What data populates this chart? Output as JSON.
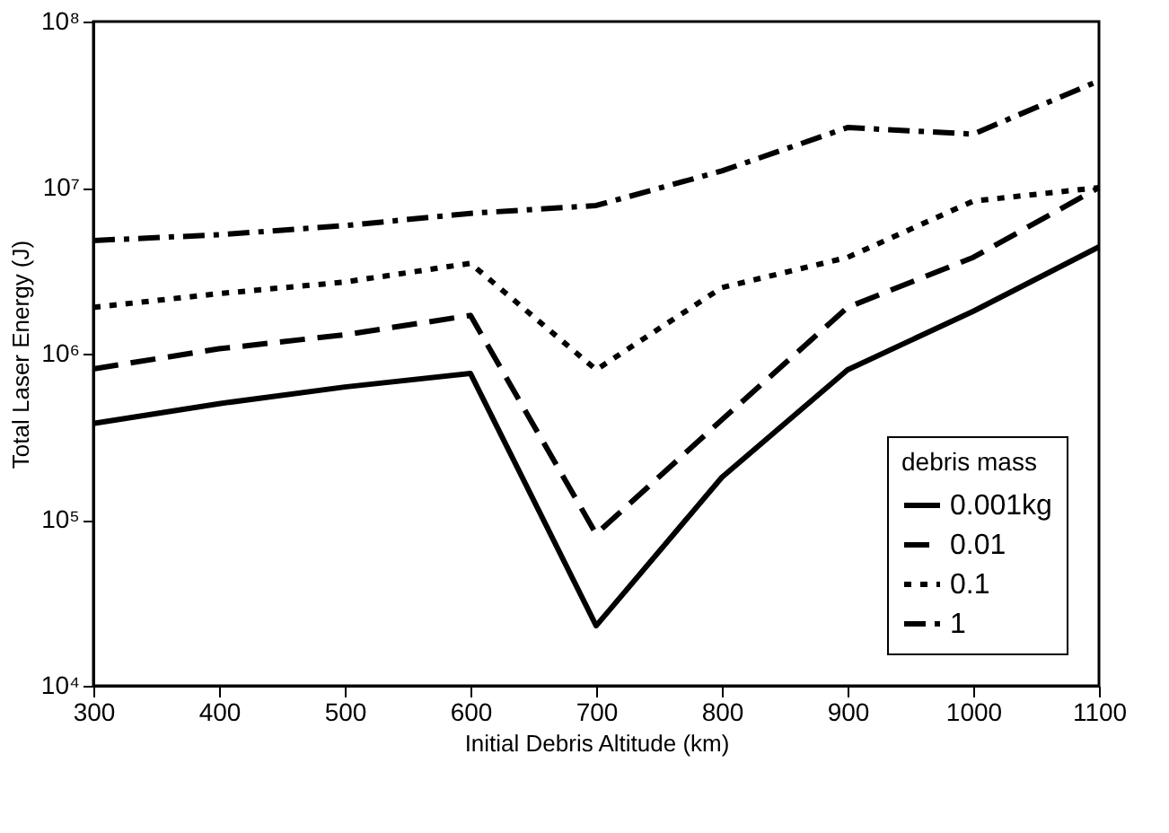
{
  "chart_data": {
    "type": "line",
    "xlabel": "Initial Debris Altitude (km)",
    "ylabel": "Total Laser Energy (J)",
    "legend_title": "debris mass",
    "legend": "bottom right",
    "log": "y",
    "grid": false,
    "marker": "none",
    "x": [
      300,
      400,
      500,
      600,
      700,
      800,
      900,
      1000,
      1100
    ],
    "xlim": [
      300,
      1100
    ],
    "xticks": [
      300,
      400,
      500,
      600,
      700,
      800,
      900,
      1000,
      1100
    ],
    "ylim": [
      10000,
      100000000
    ],
    "yticks": [
      {
        "value": 10000,
        "label": "10⁴"
      },
      {
        "value": 100000,
        "label": "10⁵"
      },
      {
        "value": 1000000,
        "label": "10⁶"
      },
      {
        "value": 10000000,
        "label": "10⁷"
      },
      {
        "value": 100000000,
        "label": "10⁸"
      }
    ],
    "series": [
      {
        "name": "0.001kg",
        "color": "#000000",
        "line_style": "solid",
        "values": [
          380000,
          500000,
          630000,
          760000,
          23000,
          180000,
          800000,
          1800000,
          4400000
        ]
      },
      {
        "name": "0.01",
        "color": "#000000",
        "line_style": "dashed",
        "values": [
          810000,
          1070000,
          1300000,
          1700000,
          82000,
          400000,
          1900000,
          3800000,
          10000000
        ]
      },
      {
        "name": "0.1",
        "color": "#000000",
        "line_style": "dotted",
        "values": [
          1900000,
          2300000,
          2700000,
          3500000,
          800000,
          2500000,
          3800000,
          8300000,
          10000000
        ]
      },
      {
        "name": "1",
        "color": "#000000",
        "line_style": "dashdot",
        "values": [
          4800000,
          5200000,
          5900000,
          7000000,
          7800000,
          12600000,
          23000000,
          21000000,
          44000000
        ]
      }
    ]
  }
}
